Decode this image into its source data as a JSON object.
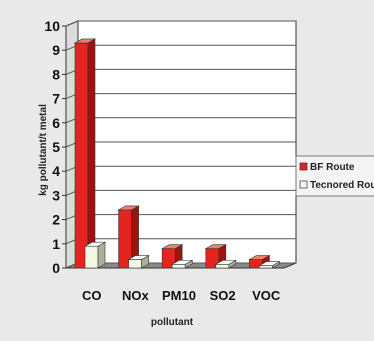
{
  "chart_data": {
    "type": "bar",
    "categories": [
      "CO",
      "NOx",
      "PM10",
      "SO2",
      "VOC"
    ],
    "series": [
      {
        "name": "BF Route",
        "values": [
          9.3,
          2.4,
          0.8,
          0.8,
          0.35
        ]
      },
      {
        "name": "Tecnored Rout",
        "values": [
          0.9,
          0.35,
          0.15,
          0.15,
          0.1
        ]
      }
    ],
    "yticks": [
      0,
      1,
      2,
      3,
      4,
      5,
      6,
      7,
      8,
      9,
      10
    ],
    "ylim": [
      0,
      10
    ],
    "xlabel": "pollutant",
    "ylabel": "kg pollutant/t metal",
    "grid": true,
    "legend_position": "right",
    "colors": {
      "series1_front": "#e52420",
      "series1_top": "#f47a70",
      "series1_side": "#9c1410",
      "series2_front": "#f3f8e4",
      "series2_top": "#ffffff",
      "series2_side": "#aab198",
      "gridline": "#555555",
      "wall": "#ffffff",
      "floor": "#8a8a8a"
    }
  }
}
